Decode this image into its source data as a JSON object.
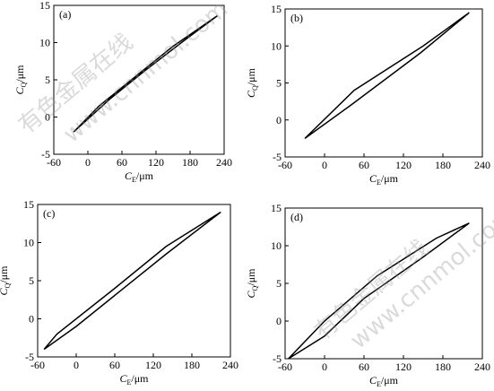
{
  "chart_data": [
    {
      "type": "line",
      "panel_label": "(a)",
      "xlabel": [
        "C",
        "E",
        "/μm"
      ],
      "ylabel": [
        "C",
        "Q",
        "/μm"
      ],
      "xlim": [
        -60,
        240
      ],
      "xticks": [
        -60,
        0,
        60,
        120,
        180,
        240
      ],
      "ylim": [
        -5,
        15
      ],
      "yticks": [
        -5,
        0,
        5,
        10,
        15
      ],
      "series": [
        {
          "color": "#000000",
          "x": [
            -25,
            20,
            80,
            150,
            228,
            170,
            100,
            40,
            -25
          ],
          "values": [
            -2,
            1.5,
            5.2,
            9.5,
            13.6,
            10.3,
            6.2,
            2.5,
            -2
          ]
        }
      ]
    },
    {
      "type": "line",
      "panel_label": "(b)",
      "xlabel": [
        "C",
        "E",
        "/μm"
      ],
      "ylabel": [
        "C",
        "Q",
        "/μm"
      ],
      "xlim": [
        -60,
        240
      ],
      "xticks": [
        -60,
        0,
        60,
        120,
        180,
        240
      ],
      "ylim": [
        -5,
        15
      ],
      "yticks": [
        -5,
        0,
        5,
        10,
        15
      ],
      "series": [
        {
          "color": "#000000",
          "x": [
            -30,
            45,
            150,
            220,
            145,
            40,
            -30
          ],
          "values": [
            -2.5,
            4,
            10,
            14.5,
            9,
            2,
            -2.5
          ]
        }
      ]
    },
    {
      "type": "line",
      "panel_label": "(c)",
      "xlabel": [
        "C",
        "E",
        "/μm"
      ],
      "ylabel": [
        "C",
        "Q",
        "/μm"
      ],
      "xlim": [
        -60,
        240
      ],
      "xticks": [
        -60,
        0,
        60,
        120,
        180,
        240
      ],
      "ylim": [
        -5,
        15
      ],
      "yticks": [
        -5,
        0,
        5,
        10,
        15
      ],
      "series": [
        {
          "color": "#000000",
          "x": [
            -50,
            -30,
            60,
            140,
            225,
            140,
            0,
            -50
          ],
          "values": [
            -4,
            -2,
            4,
            9.5,
            14,
            8.5,
            -1,
            -4
          ]
        }
      ]
    },
    {
      "type": "line",
      "panel_label": "(d)",
      "xlabel": [
        "C",
        "E",
        "/μm"
      ],
      "ylabel": [
        "C",
        "Q",
        "/μm"
      ],
      "xlim": [
        -60,
        240
      ],
      "xticks": [
        -60,
        0,
        60,
        120,
        180,
        240
      ],
      "ylim": [
        -5,
        15
      ],
      "yticks": [
        -5,
        0,
        5,
        10,
        15
      ],
      "series": [
        {
          "color": "#000000",
          "x": [
            -55,
            0,
            80,
            170,
            220,
            150,
            60,
            0,
            -55
          ],
          "values": [
            -5,
            0,
            6,
            11,
            13,
            8.5,
            3,
            -2,
            -5
          ]
        }
      ]
    }
  ],
  "watermark": [
    "有色金属在线",
    "www.cnnmol.com"
  ]
}
